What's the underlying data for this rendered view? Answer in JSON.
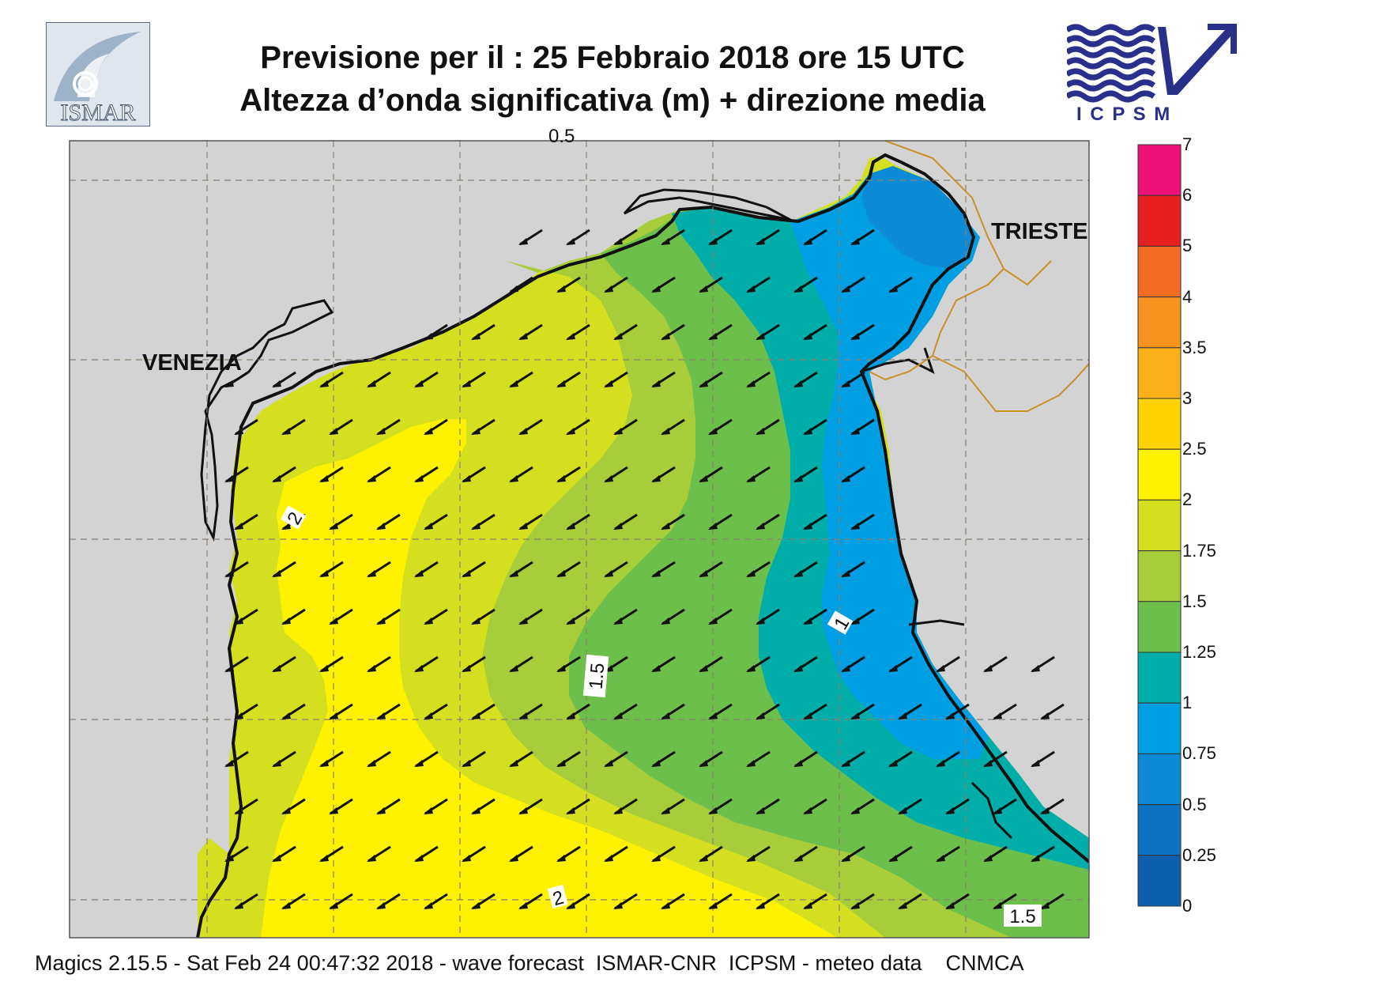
{
  "header": {
    "line1": "Previsione per il  :  25  Febbraio 2018   ore 15 UTC",
    "line2": "Altezza d’onda significativa (m) + direzione media"
  },
  "logos": {
    "left": {
      "text": "ISMAR",
      "icon": "ismar-logo"
    },
    "right": {
      "text": "I C P S M",
      "icon": "icpsm-logo"
    }
  },
  "map": {
    "places": [
      "VENEZIA",
      "TRIESTE"
    ],
    "contour_labels": [
      "2",
      "1.5",
      "1",
      "2",
      "1.5",
      "0.5"
    ],
    "arrow_direction": "south-west",
    "land_color": "#d3d3d3",
    "coast_color": "#111111",
    "border_color": "#c8902a"
  },
  "legend": {
    "title": "",
    "levels": [
      "7",
      "6",
      "5",
      "4",
      "3.5",
      "3",
      "2.5",
      "2",
      "1.75",
      "1.5",
      "1.25",
      "1",
      "0.75",
      "0.5",
      "0.25",
      "0"
    ],
    "colors": [
      "#ee1177",
      "#e62020",
      "#f36c21",
      "#f7931e",
      "#fbb01a",
      "#ffd200",
      "#fff200",
      "#d4e01f",
      "#a7cd3a",
      "#6dbf4b",
      "#00ada9",
      "#009fe3",
      "#0d8ad6",
      "#0b72c4",
      "#0d5fb0"
    ]
  },
  "footer": "Magics 2.15.5 - Sat Feb 24 00:47:32 2018 - wave forecast  ISMAR-CNR  ICPSM - meteo data    CNMCA"
}
